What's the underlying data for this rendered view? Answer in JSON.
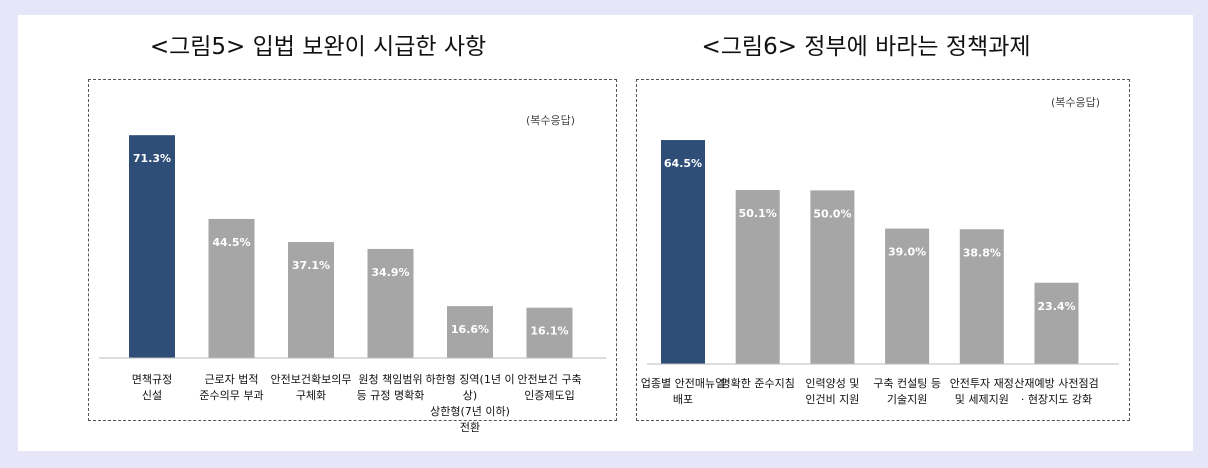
{
  "chart_data": [
    {
      "type": "bar",
      "title": "<그림5> 입법 보완이 시급한 사항",
      "note": "(복수응답)",
      "categories": [
        "면책규정\n신설",
        "근로자 법적\n준수의무 부과",
        "안전보건확보의무\n구체화",
        "원청 책임범위\n등 규정 명확화",
        "하한형 징역(1년 이상)\n상한형(7년 이하) 전환",
        "안전보건 구축\n인증제도입"
      ],
      "values": [
        71.3,
        44.5,
        37.1,
        34.9,
        16.6,
        16.1
      ],
      "value_labels": [
        "71.3%",
        "44.5%",
        "37.1%",
        "34.9%",
        "16.6%",
        "16.1%"
      ],
      "highlight_index": 0,
      "ylim": [
        0,
        80
      ]
    },
    {
      "type": "bar",
      "title": "<그림6> 정부에 바라는 정책과제",
      "note": "(복수응답)",
      "categories": [
        "업종별 안전매뉴얼\n배포",
        "명확한 준수지침",
        "인력양성 및\n인건비 지원",
        "구축 컨설팅 등\n기술지원",
        "안전투자 재정\n및 세제지원",
        "산재예방 사전점검\n· 현장지도 강화"
      ],
      "values": [
        64.5,
        50.1,
        50.0,
        39.0,
        38.8,
        23.4
      ],
      "value_labels": [
        "64.5%",
        "50.1%",
        "50.0%",
        "39.0%",
        "38.8%",
        "23.4%"
      ],
      "highlight_index": 0,
      "ylim": [
        0,
        72
      ]
    }
  ],
  "colors": {
    "highlight": "#2e4d77",
    "bar": "#a6a6a6",
    "label_text": "#ffffff"
  }
}
